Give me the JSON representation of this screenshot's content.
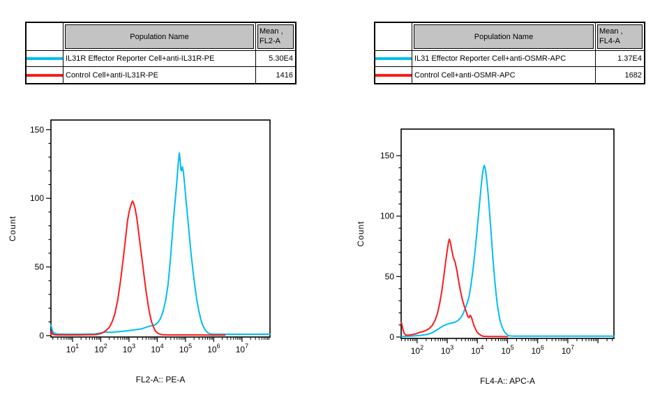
{
  "colors": {
    "cyan": "#00bdf2",
    "red": "#fb1b1c",
    "table_header_bg": "#c3c3c3",
    "axis": "#000000",
    "background": "#ffffff"
  },
  "tables": [
    {
      "header": {
        "population": "Population Name",
        "mean_line1": "Mean ,",
        "mean_line2": "FL2-A"
      },
      "rows": [
        {
          "swatch_color": "#00bdf2",
          "swatch_name": "cyan-line-swatch",
          "name": "IL31R Effector Reporter Cell+anti-IL31R-PE",
          "mean": "5.30E4"
        },
        {
          "swatch_color": "#fb1b1c",
          "swatch_name": "red-line-swatch",
          "name": "Control Cell+anti-IL31R-PE",
          "mean": "1416"
        }
      ]
    },
    {
      "header": {
        "population": "Population Name",
        "mean_line1": "Mean ,",
        "mean_line2": "FL4-A"
      },
      "rows": [
        {
          "swatch_color": "#00bdf2",
          "swatch_name": "cyan-line-swatch",
          "name": "IL31 Effector Reporter Cell+anti-OSMR-APC",
          "mean": "1.37E4"
        },
        {
          "swatch_color": "#fb1b1c",
          "swatch_name": "red-line-swatch",
          "name": "Control Cell+anti-OSMR-APC",
          "mean": "1682"
        }
      ]
    }
  ],
  "chart_data": [
    {
      "type": "line",
      "title": "",
      "xlabel": "FL2-A:: PE-A",
      "ylabel": "Count",
      "x_scale": "log10",
      "x_range_log10": [
        0.235,
        7.99
      ],
      "x_ticks_labeled_decades": [
        1,
        2,
        3,
        4,
        5,
        6,
        7
      ],
      "ylim": [
        0,
        157
      ],
      "y_major_ticks": [
        0,
        50,
        100,
        150
      ],
      "y_minor_step": 10,
      "grid": false,
      "legend": "none",
      "series": [
        {
          "name": "IL31R Effector Reporter Cell+anti-IL31R-PE",
          "color_key": "cyan",
          "peak": {
            "x": 56000,
            "count": 133
          },
          "points_log10x_count": [
            [
              0.24,
              8
            ],
            [
              0.28,
              4
            ],
            [
              0.33,
              2
            ],
            [
              0.45,
              1.2
            ],
            [
              0.8,
              1
            ],
            [
              1.3,
              1
            ],
            [
              1.8,
              1.2
            ],
            [
              2.0,
              2
            ],
            [
              2.15,
              2.6
            ],
            [
              2.35,
              2.4
            ],
            [
              2.6,
              2.8
            ],
            [
              2.9,
              3.4
            ],
            [
              3.2,
              4.2
            ],
            [
              3.45,
              5
            ],
            [
              3.6,
              6
            ],
            [
              3.75,
              7
            ],
            [
              3.9,
              7.6
            ],
            [
              4.0,
              9
            ],
            [
              4.1,
              12
            ],
            [
              4.2,
              17
            ],
            [
              4.3,
              26
            ],
            [
              4.38,
              37
            ],
            [
              4.45,
              52
            ],
            [
              4.52,
              70
            ],
            [
              4.58,
              86
            ],
            [
              4.64,
              100
            ],
            [
              4.7,
              114
            ],
            [
              4.74,
              125
            ],
            [
              4.78,
              133
            ],
            [
              4.81,
              128
            ],
            [
              4.83,
              121
            ],
            [
              4.86,
              120
            ],
            [
              4.89,
              123
            ],
            [
              4.92,
              120
            ],
            [
              4.97,
              110
            ],
            [
              5.02,
              98
            ],
            [
              5.08,
              85
            ],
            [
              5.14,
              72
            ],
            [
              5.2,
              59
            ],
            [
              5.27,
              46
            ],
            [
              5.33,
              36
            ],
            [
              5.4,
              26
            ],
            [
              5.47,
              18
            ],
            [
              5.54,
              12
            ],
            [
              5.6,
              8
            ],
            [
              5.67,
              5
            ],
            [
              5.74,
              3
            ],
            [
              5.8,
              2
            ],
            [
              5.88,
              1.2
            ],
            [
              6.0,
              1
            ],
            [
              6.5,
              1
            ],
            [
              7.2,
              1
            ],
            [
              7.99,
              1
            ]
          ]
        },
        {
          "name": "Control Cell+anti-IL31R-PE",
          "color_key": "red",
          "peak": {
            "x": 1350,
            "count": 98
          },
          "points_log10x_count": [
            [
              0.24,
              0.5
            ],
            [
              0.26,
              3
            ],
            [
              0.3,
              1
            ],
            [
              0.4,
              0.5
            ],
            [
              1.2,
              0.5
            ],
            [
              1.8,
              0.7
            ],
            [
              2.0,
              1.5
            ],
            [
              2.1,
              2.5
            ],
            [
              2.2,
              4
            ],
            [
              2.3,
              6
            ],
            [
              2.4,
              10
            ],
            [
              2.5,
              16
            ],
            [
              2.6,
              26
            ],
            [
              2.7,
              40
            ],
            [
              2.8,
              57
            ],
            [
              2.9,
              75
            ],
            [
              2.95,
              84
            ],
            [
              3.0,
              90
            ],
            [
              3.05,
              94
            ],
            [
              3.1,
              97
            ],
            [
              3.13,
              98
            ],
            [
              3.17,
              96
            ],
            [
              3.22,
              92
            ],
            [
              3.28,
              85
            ],
            [
              3.33,
              77
            ],
            [
              3.4,
              65
            ],
            [
              3.47,
              54
            ],
            [
              3.53,
              44
            ],
            [
              3.6,
              33
            ],
            [
              3.67,
              23
            ],
            [
              3.73,
              16
            ],
            [
              3.8,
              10
            ],
            [
              3.87,
              6
            ],
            [
              3.93,
              3.5
            ],
            [
              4.0,
              2
            ],
            [
              4.1,
              1
            ],
            [
              4.2,
              0.6
            ],
            [
              4.5,
              0.5
            ],
            [
              5.0,
              0.5
            ],
            [
              5.5,
              0.5
            ],
            [
              6.0,
              0.4
            ],
            [
              6.4,
              0.4
            ]
          ]
        }
      ]
    },
    {
      "type": "line",
      "title": "",
      "xlabel": "FL4-A:: APC-A",
      "ylabel": "Count",
      "x_scale": "log10",
      "x_range_log10": [
        1.47,
        8.53
      ],
      "x_ticks_labeled_decades": [
        2,
        3,
        4,
        5,
        6,
        7
      ],
      "ylim": [
        0,
        172
      ],
      "y_major_ticks": [
        0,
        50,
        100,
        150
      ],
      "y_minor_step": 10,
      "grid": false,
      "legend": "none",
      "series": [
        {
          "name": "IL31 Effector Reporter Cell+anti-OSMR-APC",
          "color_key": "cyan",
          "peak": {
            "x": 15000,
            "count": 142
          },
          "points_log10x_count": [
            [
              1.48,
              0.5
            ],
            [
              1.7,
              0.6
            ],
            [
              1.9,
              0.9
            ],
            [
              2.1,
              1.3
            ],
            [
              2.3,
              2
            ],
            [
              2.45,
              3
            ],
            [
              2.55,
              4.2
            ],
            [
              2.65,
              5.8
            ],
            [
              2.75,
              7.4
            ],
            [
              2.85,
              9
            ],
            [
              2.95,
              10.2
            ],
            [
              3.05,
              11
            ],
            [
              3.15,
              11.6
            ],
            [
              3.25,
              12.2
            ],
            [
              3.35,
              13.5
            ],
            [
              3.45,
              16
            ],
            [
              3.53,
              19.5
            ],
            [
              3.6,
              24
            ],
            [
              3.66,
              28
            ],
            [
              3.72,
              33
            ],
            [
              3.78,
              42
            ],
            [
              3.84,
              53
            ],
            [
              3.9,
              66
            ],
            [
              3.96,
              81
            ],
            [
              4.02,
              97
            ],
            [
              4.08,
              113
            ],
            [
              4.13,
              126
            ],
            [
              4.17,
              135
            ],
            [
              4.2,
              140
            ],
            [
              4.23,
              142
            ],
            [
              4.27,
              138
            ],
            [
              4.31,
              130
            ],
            [
              4.36,
              117
            ],
            [
              4.41,
              101
            ],
            [
              4.46,
              84
            ],
            [
              4.51,
              67
            ],
            [
              4.56,
              51
            ],
            [
              4.61,
              38
            ],
            [
              4.66,
              27
            ],
            [
              4.71,
              19
            ],
            [
              4.76,
              13
            ],
            [
              4.81,
              9
            ],
            [
              4.86,
              6
            ],
            [
              4.91,
              4
            ],
            [
              4.96,
              2.5
            ],
            [
              5.01,
              1.5
            ],
            [
              5.07,
              0.9
            ],
            [
              5.2,
              0.7
            ],
            [
              5.6,
              0.7
            ],
            [
              6.2,
              0.7
            ],
            [
              7.0,
              0.7
            ],
            [
              8.0,
              0.7
            ],
            [
              8.53,
              0.7
            ]
          ]
        },
        {
          "name": "Control Cell+anti-OSMR-APC",
          "color_key": "red",
          "peak": {
            "x": 1150,
            "count": 81
          },
          "points_log10x_count": [
            [
              1.48,
              12
            ],
            [
              1.52,
              7
            ],
            [
              1.57,
              3
            ],
            [
              1.63,
              1.5
            ],
            [
              1.75,
              1.7
            ],
            [
              1.9,
              2.3
            ],
            [
              2.0,
              3
            ],
            [
              2.1,
              4
            ],
            [
              2.2,
              4.5
            ],
            [
              2.3,
              5.5
            ],
            [
              2.4,
              7
            ],
            [
              2.5,
              9.5
            ],
            [
              2.6,
              14
            ],
            [
              2.68,
              20
            ],
            [
              2.75,
              28
            ],
            [
              2.82,
              38
            ],
            [
              2.88,
              49
            ],
            [
              2.94,
              61
            ],
            [
              3.0,
              72
            ],
            [
              3.04,
              78
            ],
            [
              3.07,
              81
            ],
            [
              3.11,
              78
            ],
            [
              3.15,
              72
            ],
            [
              3.2,
              66
            ],
            [
              3.26,
              62
            ],
            [
              3.32,
              55
            ],
            [
              3.38,
              46
            ],
            [
              3.44,
              38
            ],
            [
              3.5,
              31
            ],
            [
              3.57,
              25
            ],
            [
              3.63,
              21
            ],
            [
              3.68,
              17
            ],
            [
              3.72,
              16
            ],
            [
              3.76,
              18
            ],
            [
              3.79,
              17
            ],
            [
              3.83,
              14
            ],
            [
              3.88,
              10
            ],
            [
              3.93,
              7
            ],
            [
              3.98,
              4.5
            ],
            [
              4.03,
              3
            ],
            [
              4.08,
              2
            ],
            [
              4.13,
              1.2
            ],
            [
              4.2,
              0.6
            ],
            [
              4.4,
              0.4
            ],
            [
              4.7,
              0.4
            ],
            [
              5.0,
              0.3
            ]
          ]
        }
      ]
    }
  ]
}
